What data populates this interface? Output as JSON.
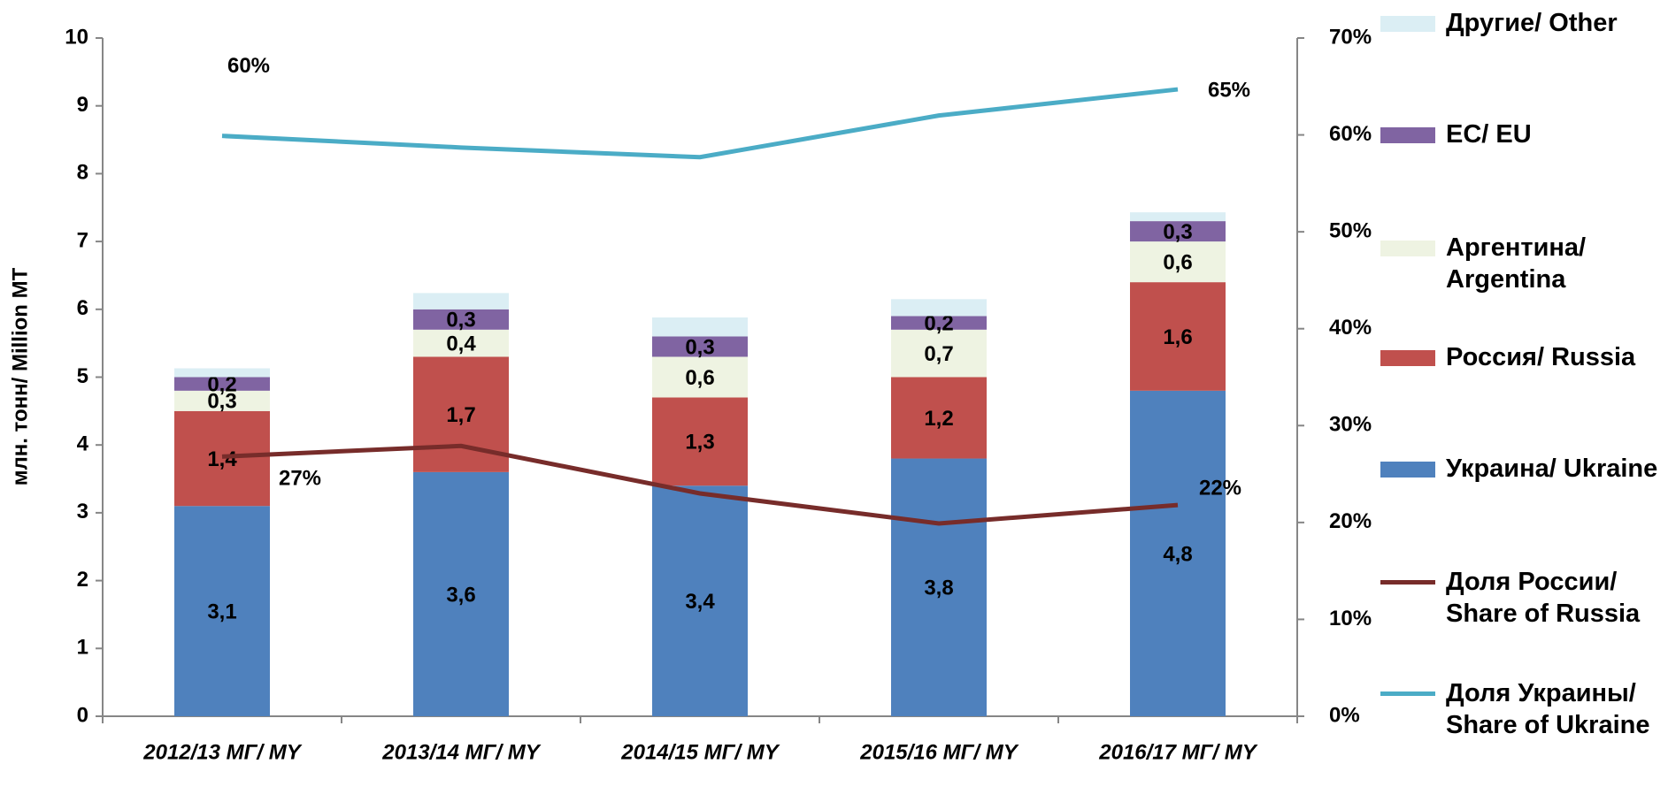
{
  "chart_data": {
    "type": "stacked-bar-line",
    "y_label": "млн. тонн/ Million MT",
    "categories": [
      "2012/13 МГ/ MY",
      "2013/14 МГ/ MY",
      "2014/15 МГ/ MY",
      "2015/16 МГ/ MY",
      "2016/17 МГ/ MY"
    ],
    "ylim": [
      0,
      10
    ],
    "yticks": [
      0,
      1,
      2,
      3,
      4,
      5,
      6,
      7,
      8,
      9,
      10
    ],
    "y2lim": [
      0,
      70
    ],
    "y2ticks": [
      {
        "value": 0,
        "label": "0%"
      },
      {
        "value": 10,
        "label": "10%"
      },
      {
        "value": 20,
        "label": "20%"
      },
      {
        "value": 30,
        "label": "30%"
      },
      {
        "value": 40,
        "label": "40%"
      },
      {
        "value": 50,
        "label": "50%"
      },
      {
        "value": 60,
        "label": "60%"
      },
      {
        "value": 70,
        "label": "70%"
      }
    ],
    "series": [
      {
        "name": "Украина/ Ukraine",
        "color": "#4f81bd",
        "values": [
          3.1,
          3.6,
          3.4,
          3.8,
          4.8
        ],
        "value_labels": [
          "3,1",
          "3,6",
          "3,4",
          "3,8",
          "4,8"
        ]
      },
      {
        "name": "Россия/ Russia",
        "color": "#c0504d",
        "values": [
          1.4,
          1.7,
          1.3,
          1.2,
          1.6
        ],
        "value_labels": [
          "1,4",
          "1,7",
          "1,3",
          "1,2",
          "1,6"
        ]
      },
      {
        "name": "Аргентина/ Argentina",
        "color": "#eef3e2",
        "values": [
          0.3,
          0.4,
          0.6,
          0.7,
          0.6
        ],
        "value_labels": [
          "0,3",
          "0,4",
          "0,6",
          "0,7",
          "0,6"
        ]
      },
      {
        "name": "ЕС/ EU",
        "color": "#8064a2",
        "values": [
          0.2,
          0.3,
          0.3,
          0.2,
          0.3
        ],
        "value_labels": [
          "0,2",
          "0,3",
          "0,3",
          "0,2",
          "0,3"
        ]
      },
      {
        "name": "Другие/ Other",
        "color": "#dbeef4",
        "values": [
          0.13,
          0.24,
          0.28,
          0.25,
          0.13
        ]
      },
      {
        "name": "Доля России/ Share of Russia",
        "color": "#772c2a",
        "axis": "y2",
        "kind": "line",
        "values": [
          26.8,
          27.9,
          23,
          19.9,
          21.8
        ],
        "value_labels": [
          "27%",
          null,
          null,
          null,
          "22%"
        ]
      },
      {
        "name": "Доля Украины/ Share of Ukraine",
        "color": "#4bacc6",
        "axis": "y2",
        "kind": "line",
        "values": [
          59.9,
          58.7,
          57.7,
          62,
          64.7
        ],
        "value_labels": [
          "60%",
          null,
          null,
          null,
          "65%"
        ]
      }
    ]
  }
}
